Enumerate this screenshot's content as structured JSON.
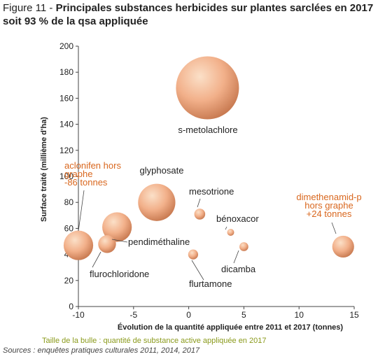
{
  "figure": {
    "number": "Figure 11 - ",
    "title": "Principales substances herbicides sur plantes sarclées en  2017 soit 93 % de la qsa appliquée"
  },
  "footer": {
    "bubble_caption": "Taille de la bulle : quantité de substance active  appliquée en 2017",
    "sources": "Sources : enquêtes pratiques culturales 2011, 2014, 2017"
  },
  "colors": {
    "bubble_light": "#fbe0c8",
    "bubble_mid": "#f2b08a",
    "bubble_dark": "#c97b52",
    "annotation": "#d9671e",
    "axis": "#444444"
  },
  "chart_data": {
    "type": "scatter",
    "bubble": true,
    "xlabel": "Évolution de la quantité appliquée entre 2011 et 2017 (tonnes)",
    "ylabel": "Surface traité (millième d'ha)",
    "xlim": [
      -10,
      15
    ],
    "ylim": [
      0,
      200
    ],
    "xticks": [
      -10,
      -5,
      0,
      5,
      10,
      15
    ],
    "yticks": [
      0,
      20,
      40,
      60,
      80,
      100,
      120,
      140,
      160,
      180,
      200
    ],
    "grid": false,
    "points": [
      {
        "label": "s-metolachlore",
        "x": 1.7,
        "y": 168,
        "size": 100
      },
      {
        "label": "glyphosate",
        "x": -2.9,
        "y": 80,
        "size": 35
      },
      {
        "label": "pendiméthaline",
        "x": -6.5,
        "y": 61,
        "size": 22
      },
      {
        "label": "aclonifen hors graphe -86 tonnes",
        "x": -10,
        "y": 47,
        "size": 22
      },
      {
        "label": "flurochloridone",
        "x": -7.4,
        "y": 48,
        "size": 8
      },
      {
        "label": "mesotrione",
        "x": 1.0,
        "y": 71,
        "size": 3
      },
      {
        "label": "bénoxacor",
        "x": 3.8,
        "y": 57,
        "size": 1
      },
      {
        "label": "dicamba",
        "x": 5.0,
        "y": 46,
        "size": 2
      },
      {
        "label": "flurtamone",
        "x": 0.4,
        "y": 40,
        "size": 2.5
      },
      {
        "label": "dimethenamid-p hors graphe +24 tonnes",
        "x": 14,
        "y": 46,
        "size": 12
      }
    ]
  }
}
